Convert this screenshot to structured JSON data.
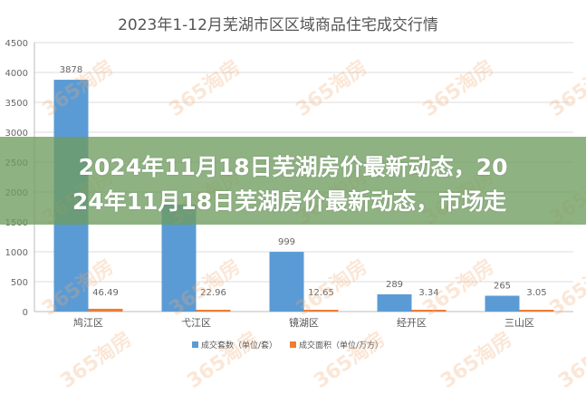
{
  "chart_data": {
    "type": "bar",
    "title": "2023年1-12月芜湖市区区域商品住宅成交行情",
    "categories": [
      "鸠江区",
      "弋江区",
      "镜湖区",
      "经开区",
      "三山区"
    ],
    "series": [
      {
        "name": "成交套数（单位/套）",
        "values": [
          3878,
          1790,
          999,
          289,
          265
        ],
        "labels": [
          "3878",
          "",
          "999",
          "289",
          "265"
        ],
        "color": "#5b9bd5"
      },
      {
        "name": "成交面积（单位/万方）",
        "values": [
          46.49,
          22.96,
          12.65,
          3.34,
          3.05
        ],
        "labels": [
          "46.49",
          "22.96",
          "12.65",
          "3.34",
          "3.05"
        ],
        "color": "#ed7d31"
      }
    ],
    "ylim": [
      0,
      4500
    ],
    "yticks": [
      "0",
      "500",
      "1000",
      "1500",
      "2000",
      "2500",
      "3000",
      "3500",
      "4000",
      "4500"
    ],
    "grid": true,
    "legend": "bottom"
  },
  "watermark": "365淘房",
  "overlay": {
    "line1": "2024年11月18日芜湖房价最新动态，20",
    "line2": "24年11月18日芜湖房价最新动态，市场走",
    "color": "#709c60"
  }
}
